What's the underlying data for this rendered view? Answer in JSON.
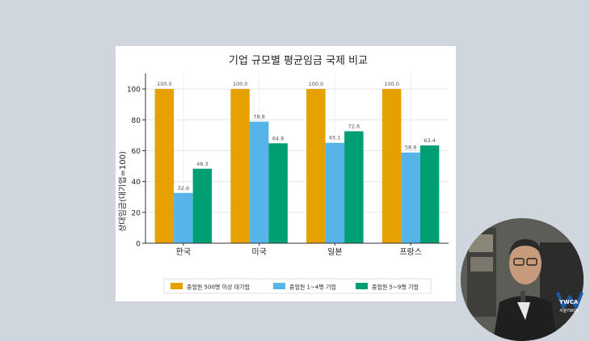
{
  "chart_data": {
    "type": "bar",
    "title": "기업 규모별 평균임금 국제 비교",
    "ylabel": "상대임금(대기업=100)",
    "xlabel": "",
    "categories": [
      "한국",
      "미국",
      "일본",
      "프랑스"
    ],
    "ylim": [
      0,
      110
    ],
    "yticks": [
      0,
      20,
      40,
      60,
      80,
      100
    ],
    "grid": true,
    "legend_position": "bottom",
    "series": [
      {
        "name": "종업원 500명 이상 대기업",
        "color": "#e6a100",
        "values": [
          100.0,
          100.0,
          100.0,
          100.0
        ],
        "labels": [
          "100.0",
          "100.0",
          "100.0",
          "100.0"
        ]
      },
      {
        "name": "종업원 1~4명 기업",
        "color": "#56b4e9",
        "values": [
          32.6,
          78.8,
          65.1,
          58.8
        ],
        "labels": [
          "32.6",
          "78.8",
          "65.1",
          "58.8"
        ]
      },
      {
        "name": "종업원 5~9명 기업",
        "color": "#009e73",
        "values": [
          48.3,
          64.8,
          72.6,
          63.4
        ],
        "labels": [
          "48.3",
          "64.8",
          "72.6",
          "63.4"
        ]
      }
    ]
  },
  "overlay": {
    "logo_text": "YWCA",
    "logo_subtext": "서울YWCA"
  }
}
